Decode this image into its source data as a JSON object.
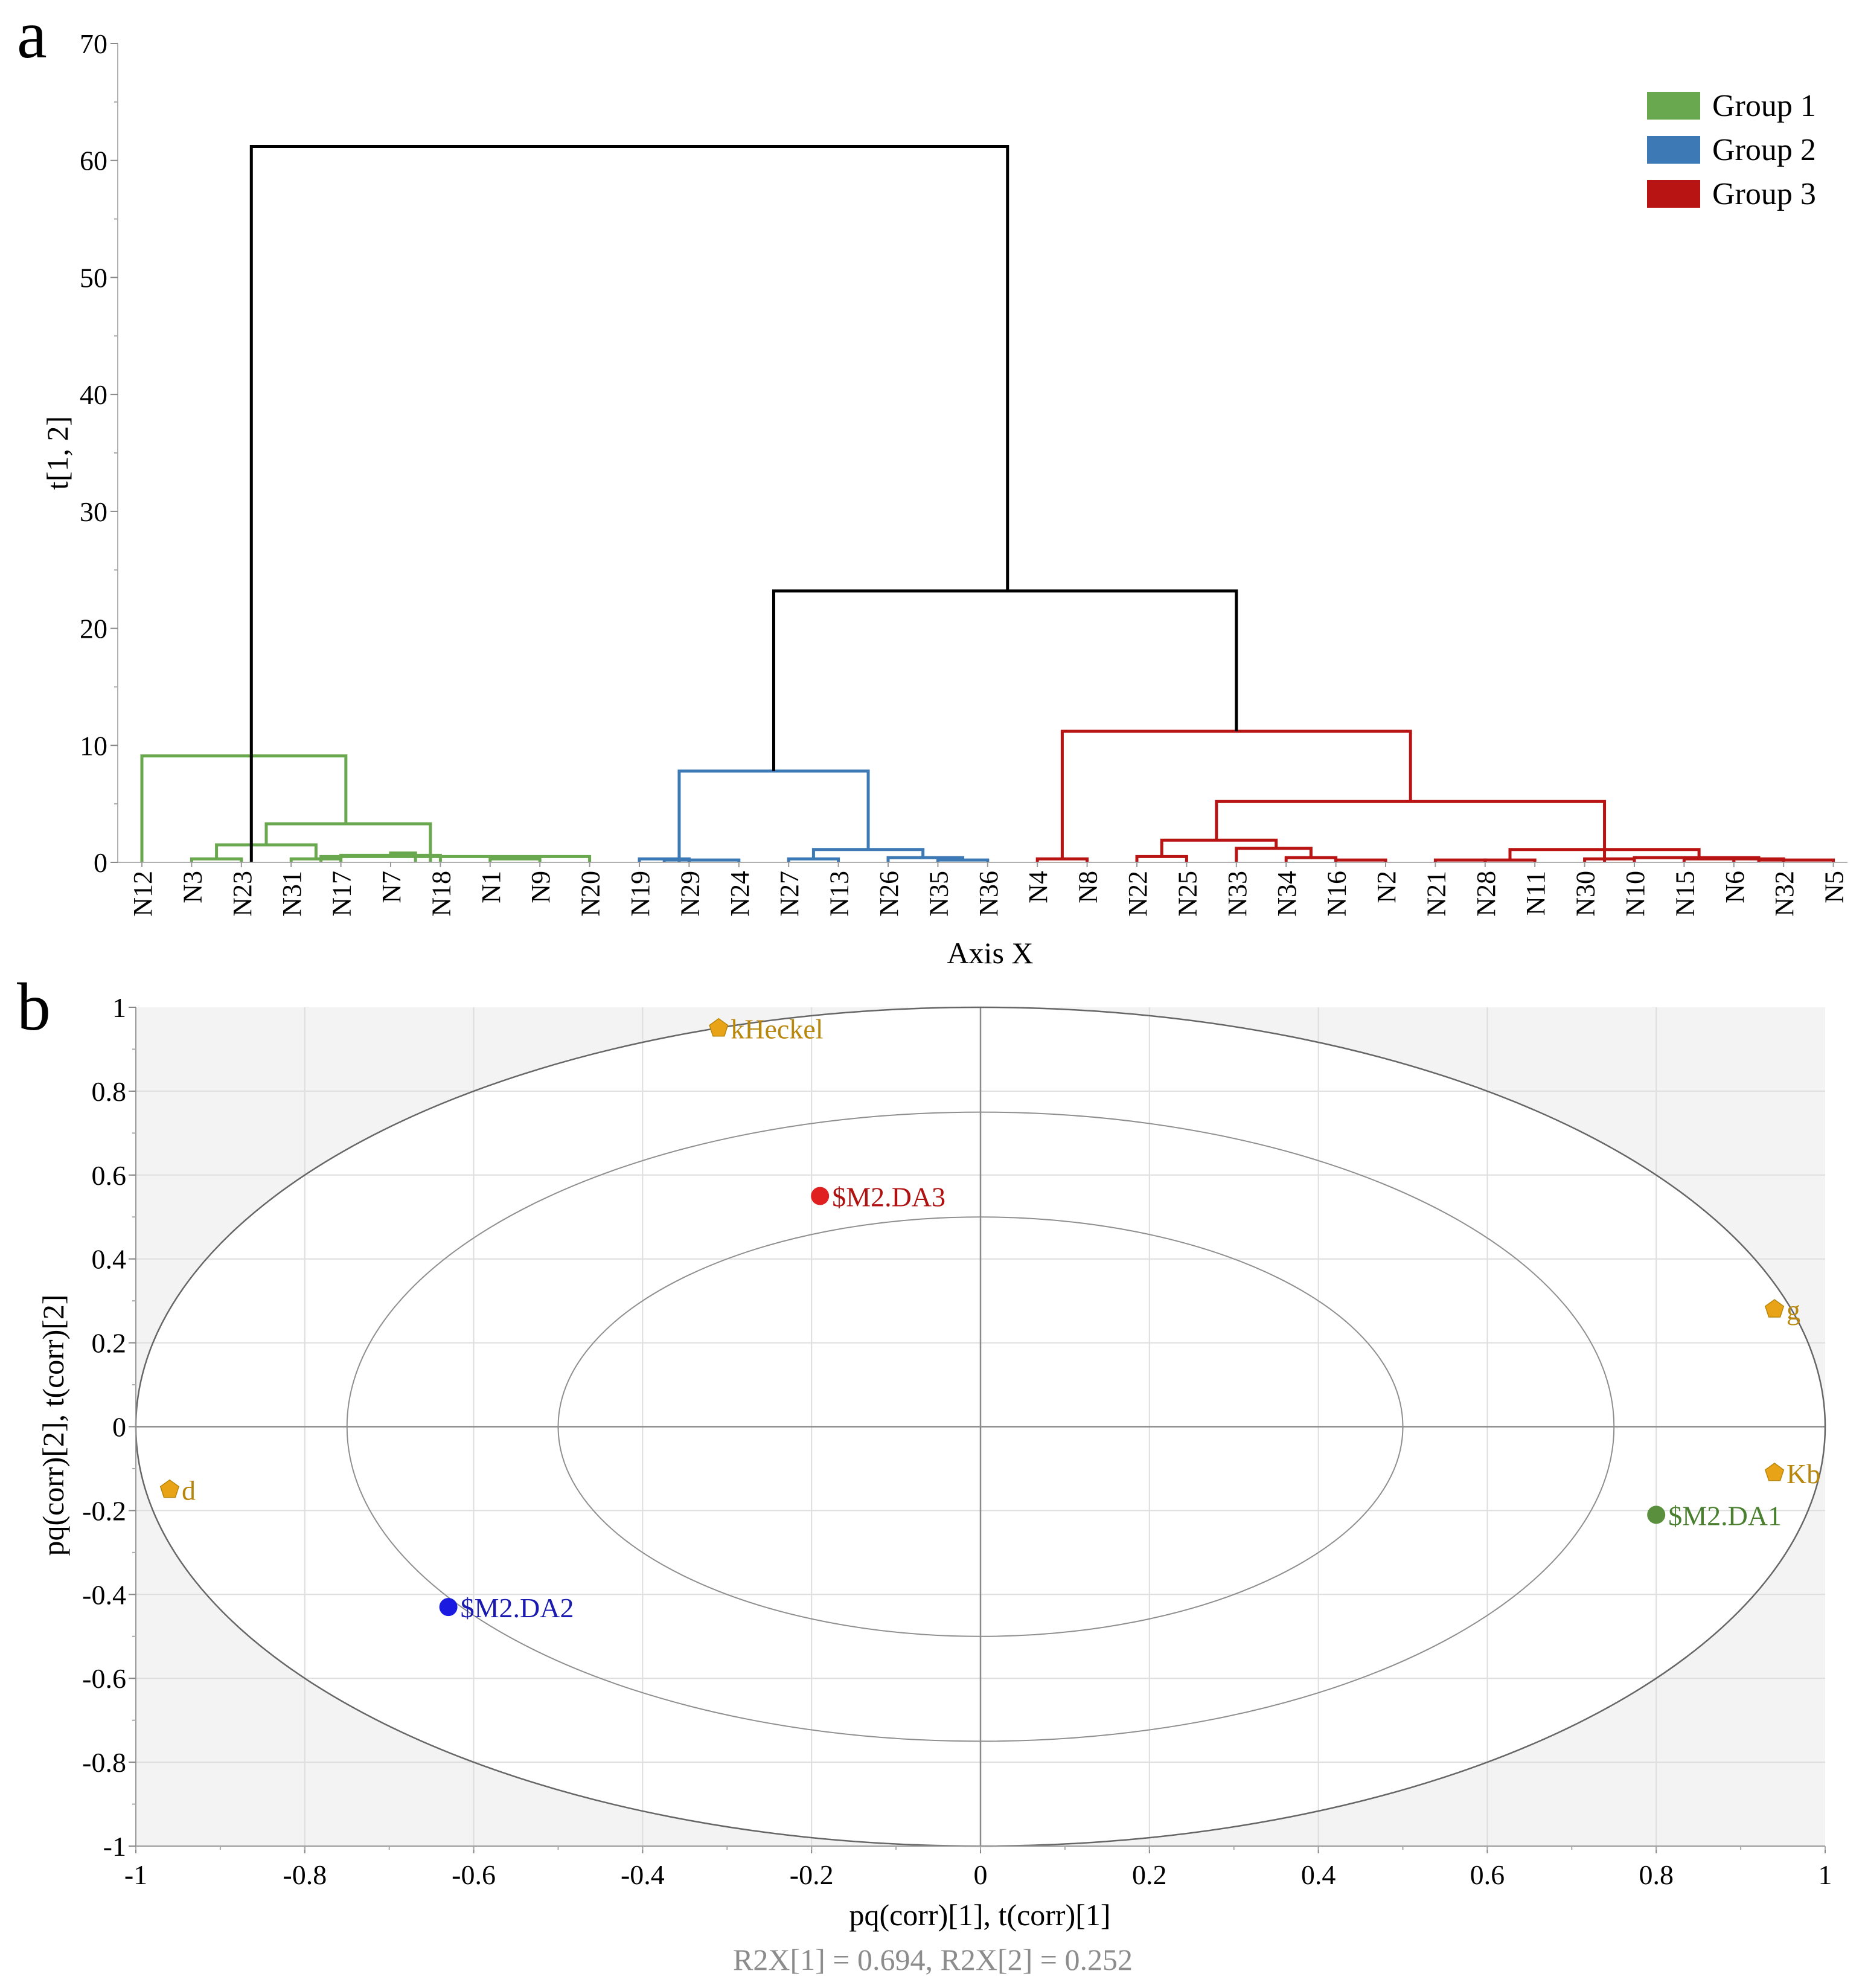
{
  "chart_data": [
    {
      "type": "dendrogram",
      "panel_label": "a",
      "ylabel": "t[1, 2]",
      "xlabel": "Axis X",
      "ylim": [
        0,
        70
      ],
      "yticks": [
        0,
        10,
        20,
        30,
        40,
        50,
        60,
        70
      ],
      "leaves": [
        "N12",
        "N3",
        "N23",
        "N31",
        "N17",
        "N7",
        "N18",
        "N1",
        "N9",
        "N20",
        "N19",
        "N29",
        "N24",
        "N27",
        "N13",
        "N26",
        "N35",
        "N36",
        "N4",
        "N8",
        "N22",
        "N25",
        "N33",
        "N34",
        "N16",
        "N2",
        "N21",
        "N28",
        "N11",
        "N30",
        "N10",
        "N15",
        "N6",
        "N32",
        "N5"
      ],
      "legend": [
        {
          "label": "Group 1",
          "color": "#6aa84f"
        },
        {
          "label": "Group 2",
          "color": "#3d7ab5"
        },
        {
          "label": "Group 3",
          "color": "#b81414"
        }
      ],
      "root_color": "#000000",
      "merges": [
        {
          "a": 1,
          "b": 2,
          "h": 0.3,
          "g": 1
        },
        {
          "a": 0,
          "b": 0,
          "h": 0,
          "g": 1
        },
        {
          "a": 3,
          "b": 4,
          "h": 0.3,
          "g": 1
        },
        {
          "a": 7,
          "b": 8,
          "h": 0.3,
          "g": 1
        },
        {
          "a": 9,
          "b": 3.6,
          "h": 0.5,
          "g": 1
        },
        {
          "a": 6,
          "b": 4,
          "h": 0.6,
          "g": 1
        },
        {
          "a": 5,
          "b": 5.5,
          "h": 0.8,
          "g": 1
        },
        {
          "a": 1.5,
          "b": 3.5,
          "h": 1.5,
          "g": 1
        },
        {
          "a": 2.5,
          "b": 5.8,
          "h": 3.3,
          "g": 1
        },
        {
          "a": 0,
          "b": 4.1,
          "h": 9.1,
          "g": 1
        },
        {
          "a": 10,
          "b": 11,
          "h": 0.3,
          "g": 2
        },
        {
          "a": 10.5,
          "b": 12,
          "h": 0.2,
          "g": 2
        },
        {
          "a": 13,
          "b": 14,
          "h": 0.3,
          "g": 2
        },
        {
          "a": 16,
          "b": 17,
          "h": 0.2,
          "g": 2
        },
        {
          "a": 15,
          "b": 16.5,
          "h": 0.4,
          "g": 2
        },
        {
          "a": 13.5,
          "b": 15.7,
          "h": 1.1,
          "g": 2
        },
        {
          "a": 10.8,
          "b": 14.6,
          "h": 7.8,
          "g": 2
        },
        {
          "a": 18,
          "b": 19,
          "h": 0.3,
          "g": 3
        },
        {
          "a": 20,
          "b": 21,
          "h": 0.5,
          "g": 3
        },
        {
          "a": 23,
          "b": 24,
          "h": 0.4,
          "g": 3
        },
        {
          "a": 24,
          "b": 25,
          "h": 0.2,
          "g": 3
        },
        {
          "a": 22,
          "b": 23.5,
          "h": 1.2,
          "g": 3
        },
        {
          "a": 20.5,
          "b": 22.8,
          "h": 1.9,
          "g": 3
        },
        {
          "a": 26,
          "b": 27,
          "h": 0.2,
          "g": 3
        },
        {
          "a": 27,
          "b": 28,
          "h": 0.2,
          "g": 3
        },
        {
          "a": 29,
          "b": 30,
          "h": 0.3,
          "g": 3
        },
        {
          "a": 31,
          "b": 32,
          "h": 0.3,
          "g": 3
        },
        {
          "a": 32,
          "b": 33,
          "h": 0.3,
          "g": 3
        },
        {
          "a": 30,
          "b": 32.5,
          "h": 0.4,
          "g": 3
        },
        {
          "a": 32.5,
          "b": 34,
          "h": 0.2,
          "g": 3
        },
        {
          "a": 27.5,
          "b": 31.3,
          "h": 1.1,
          "g": 3
        },
        {
          "a": 29.4,
          "b": 29.4,
          "h": 1.1,
          "g": 3
        },
        {
          "a": 21.6,
          "b": 29.4,
          "h": 5.2,
          "g": 3
        },
        {
          "a": 18.5,
          "b": 25.5,
          "h": 11.2,
          "g": 3
        },
        {
          "a": 12.7,
          "b": 22.0,
          "h": 23.2,
          "g": 0
        },
        {
          "a": 2.2,
          "b": 17.4,
          "h": 61.2,
          "g": 0
        }
      ]
    },
    {
      "type": "scatter",
      "panel_label": "b",
      "xlabel": "pq(corr)[1], t(corr)[1]",
      "ylabel": "pq(corr)[2], t(corr)[2]",
      "footnote": "R2X[1] = 0.694, R2X[2] = 0.252",
      "xlim": [
        -1,
        1
      ],
      "ylim": [
        -1,
        1
      ],
      "xticks": [
        -1,
        -0.8,
        -0.6,
        -0.4,
        -0.2,
        0,
        0.2,
        0.4,
        0.6,
        0.8,
        1
      ],
      "yticks": [
        1,
        0.8,
        0.6,
        0.4,
        0.2,
        0,
        -0.2,
        -0.4,
        -0.6,
        -0.8,
        -1
      ],
      "ellipse_radii": [
        1,
        0.75,
        0.5
      ],
      "points": [
        {
          "label": "kHeckel",
          "x": -0.31,
          "y": 0.95,
          "shape": "pentagon",
          "color": "#e8a317",
          "label_color": "#b8860b"
        },
        {
          "label": "$M2.DA3",
          "x": -0.19,
          "y": 0.55,
          "shape": "circle",
          "color": "#e02020",
          "label_color": "#b01010"
        },
        {
          "label": "g",
          "x": 0.94,
          "y": 0.28,
          "shape": "pentagon",
          "color": "#e8a317",
          "label_color": "#b8860b"
        },
        {
          "label": "d",
          "x": -0.96,
          "y": -0.15,
          "shape": "pentagon",
          "color": "#e8a317",
          "label_color": "#b8860b"
        },
        {
          "label": "Kb",
          "x": 0.94,
          "y": -0.11,
          "shape": "pentagon",
          "color": "#e8a317",
          "label_color": "#b8860b"
        },
        {
          "label": "$M2.DA1",
          "x": 0.8,
          "y": -0.21,
          "shape": "circle",
          "color": "#5a8f3e",
          "label_color": "#4a7f30"
        },
        {
          "label": "$M2.DA2",
          "x": -0.63,
          "y": -0.43,
          "shape": "circle",
          "color": "#1a1ae0",
          "label_color": "#1a1ab0"
        }
      ]
    }
  ]
}
